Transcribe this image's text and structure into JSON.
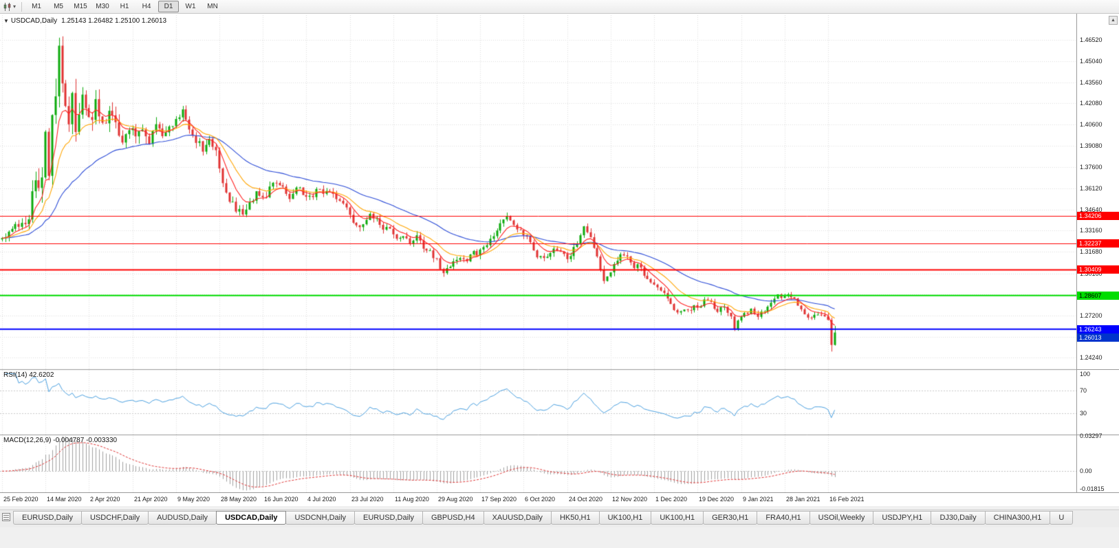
{
  "toolbar": {
    "dropdown_icon": "▾",
    "timeframes": [
      "M1",
      "M5",
      "M15",
      "M30",
      "H1",
      "H4",
      "D1",
      "W1",
      "MN"
    ],
    "active_timeframe": "D1"
  },
  "chart": {
    "collapse_icon": "▼",
    "title_symbol": "USDCAD,Daily",
    "title_ohlc": "1.25143 1.26482 1.25100 1.26013",
    "scroll_up_icon": "▲",
    "colors": {
      "background": "#ffffff",
      "grid": "#dcdcdc",
      "up": "#0caa0c",
      "down": "#e03232",
      "ma_fast": "#ff2222",
      "ma_mid": "#ffa500",
      "ma_slow": "#2b4bd7",
      "rsi_line": "#4aa0e0",
      "macd_hist": "#a0a0a0",
      "macd_signal": "#e03232",
      "separator": "#9a9a9a",
      "axis_text": "#1a1a1a"
    },
    "price_axis_labels": [
      "1.46520",
      "1.45040",
      "1.43560",
      "1.42080",
      "1.40600",
      "1.39080",
      "1.37600",
      "1.36120",
      "1.34640",
      "1.33160",
      "1.31680",
      "1.30160",
      "1.28680",
      "1.27200",
      "1.25720",
      "1.24240"
    ],
    "hlines": [
      {
        "price": 1.34206,
        "label": "1.34206",
        "color": "#ff0000",
        "text_color": "#ffffff",
        "width": 1
      },
      {
        "price": 1.32237,
        "label": "1.32237",
        "color": "#ff0000",
        "text_color": "#ffffff",
        "width": 1
      },
      {
        "price": 1.30409,
        "label": "1.30409",
        "color": "#ff0000",
        "text_color": "#ffffff",
        "width": 2
      },
      {
        "price": 1.28607,
        "label": "1.28607",
        "color": "#00dd00",
        "text_color": "#000000",
        "width": 2
      },
      {
        "price": 1.26243,
        "label": "1.26243",
        "color": "#0000ff",
        "text_color": "#ffffff",
        "width": 2
      }
    ],
    "current_price": {
      "price": 1.26013,
      "label": "1.26013",
      "color": "#0033cc",
      "text_color": "#ffffff"
    }
  },
  "chart_data": {
    "type": "candlestick",
    "symbol": "USDCAD",
    "timeframe": "Daily",
    "visible_price_range": [
      1.2344,
      1.4826
    ],
    "bar_count": 250,
    "bars_per_x_label": 13,
    "x_labels": [
      "25 Feb 2020",
      "14 Mar 2020",
      "2 Apr 2020",
      "21 Apr 2020",
      "9 May 2020",
      "28 May 2020",
      "16 Jun 2020",
      "4 Jul 2020",
      "23 Jul 2020",
      "11 Aug 2020",
      "29 Aug 2020",
      "17 Sep 2020",
      "6 Oct 2020",
      "24 Oct 2020",
      "12 Nov 2020",
      "1 Dec 2020",
      "19 Dec 2020",
      "9 Jan 2021",
      "28 Jan 2021",
      "16 Feb 2021"
    ],
    "current_bar": {
      "open": 1.25143,
      "high": 1.26482,
      "low": 1.251,
      "close": 1.26013
    },
    "previous_bar": {
      "open": 1.269,
      "high": 1.2706,
      "low": 1.2468,
      "close": 1.25143
    },
    "key_extremes": [
      {
        "index": 17,
        "high": 1.4668
      },
      {
        "index": 132,
        "low": 1.2992
      },
      {
        "index": 151,
        "high": 1.3442
      }
    ],
    "close_path_anchors": [
      [
        0,
        1.3272
      ],
      [
        3,
        1.331
      ],
      [
        5,
        1.338
      ],
      [
        7,
        1.335
      ],
      [
        8,
        1.342
      ],
      [
        9,
        1.365
      ],
      [
        10,
        1.362
      ],
      [
        11,
        1.368
      ],
      [
        12,
        1.374
      ],
      [
        13,
        1.392
      ],
      [
        14,
        1.378
      ],
      [
        15,
        1.403
      ],
      [
        16,
        1.435
      ],
      [
        17,
        1.453
      ],
      [
        18,
        1.442
      ],
      [
        19,
        1.426
      ],
      [
        20,
        1.412
      ],
      [
        21,
        1.425
      ],
      [
        22,
        1.402
      ],
      [
        23,
        1.415
      ],
      [
        24,
        1.43
      ],
      [
        25,
        1.422
      ],
      [
        26,
        1.409
      ],
      [
        28,
        1.418
      ],
      [
        30,
        1.406
      ],
      [
        32,
        1.415
      ],
      [
        34,
        1.408
      ],
      [
        36,
        1.398
      ],
      [
        38,
        1.406
      ],
      [
        40,
        1.395
      ],
      [
        42,
        1.401
      ],
      [
        44,
        1.393
      ],
      [
        46,
        1.405
      ],
      [
        48,
        1.397
      ],
      [
        50,
        1.402
      ],
      [
        52,
        1.409
      ],
      [
        54,
        1.413
      ],
      [
        56,
        1.402
      ],
      [
        58,
        1.395
      ],
      [
        60,
        1.39
      ],
      [
        62,
        1.393
      ],
      [
        64,
        1.385
      ],
      [
        65,
        1.377
      ],
      [
        67,
        1.358
      ],
      [
        69,
        1.35
      ],
      [
        71,
        1.346
      ],
      [
        72,
        1.343
      ],
      [
        74,
        1.35
      ],
      [
        76,
        1.357
      ],
      [
        78,
        1.3545
      ],
      [
        80,
        1.36
      ],
      [
        82,
        1.365
      ],
      [
        84,
        1.36
      ],
      [
        86,
        1.356
      ],
      [
        88,
        1.364
      ],
      [
        90,
        1.359
      ],
      [
        92,
        1.355
      ],
      [
        94,
        1.36
      ],
      [
        96,
        1.357
      ],
      [
        98,
        1.361
      ],
      [
        100,
        1.356
      ],
      [
        102,
        1.352
      ],
      [
        104,
        1.342
      ],
      [
        106,
        1.337
      ],
      [
        108,
        1.3345
      ],
      [
        110,
        1.342
      ],
      [
        112,
        1.339
      ],
      [
        114,
        1.334
      ],
      [
        116,
        1.331
      ],
      [
        118,
        1.326
      ],
      [
        120,
        1.329
      ],
      [
        122,
        1.323
      ],
      [
        124,
        1.326
      ],
      [
        126,
        1.321
      ],
      [
        128,
        1.317
      ],
      [
        130,
        1.311
      ],
      [
        131,
        1.306
      ],
      [
        132,
        1.3005
      ],
      [
        133,
        1.306
      ],
      [
        135,
        1.311
      ],
      [
        137,
        1.313
      ],
      [
        139,
        1.31
      ],
      [
        141,
        1.316
      ],
      [
        143,
        1.3165
      ],
      [
        145,
        1.322
      ],
      [
        147,
        1.329
      ],
      [
        149,
        1.337
      ],
      [
        151,
        1.3415
      ],
      [
        153,
        1.337
      ],
      [
        155,
        1.331
      ],
      [
        156,
        1.328
      ],
      [
        158,
        1.323
      ],
      [
        160,
        1.315
      ],
      [
        162,
        1.313
      ],
      [
        164,
        1.316
      ],
      [
        166,
        1.32
      ],
      [
        168,
        1.315
      ],
      [
        169,
        1.312
      ],
      [
        171,
        1.318
      ],
      [
        173,
        1.329
      ],
      [
        174,
        1.333
      ],
      [
        176,
        1.329
      ],
      [
        178,
        1.313
      ],
      [
        180,
        1.2985
      ],
      [
        182,
        1.304
      ],
      [
        184,
        1.312
      ],
      [
        186,
        1.316
      ],
      [
        188,
        1.309
      ],
      [
        190,
        1.306
      ],
      [
        192,
        1.302
      ],
      [
        194,
        1.296
      ],
      [
        195,
        1.293
      ],
      [
        197,
        1.289
      ],
      [
        199,
        1.283
      ],
      [
        201,
        1.277
      ],
      [
        203,
        1.273
      ],
      [
        205,
        1.276
      ],
      [
        207,
        1.279
      ],
      [
        208,
        1.277
      ],
      [
        210,
        1.284
      ],
      [
        212,
        1.28
      ],
      [
        214,
        1.275
      ],
      [
        216,
        1.278
      ],
      [
        218,
        1.27
      ],
      [
        219,
        1.2645
      ],
      [
        220,
        1.269
      ],
      [
        222,
        1.272
      ],
      [
        224,
        1.276
      ],
      [
        226,
        1.272
      ],
      [
        228,
        1.276
      ],
      [
        230,
        1.282
      ],
      [
        232,
        1.286
      ],
      [
        234,
        1.2845
      ],
      [
        236,
        1.2865
      ],
      [
        238,
        1.279
      ],
      [
        240,
        1.2725
      ],
      [
        242,
        1.2695
      ],
      [
        244,
        1.274
      ],
      [
        246,
        1.2715
      ],
      [
        247,
        1.269
      ],
      [
        248,
        1.25143
      ],
      [
        249,
        1.26013
      ]
    ],
    "overlays": {
      "moving_averages": [
        "ma_fast",
        "ma_mid",
        "ma_slow"
      ]
    }
  },
  "rsi_pane": {
    "label": "RSI(14) 42.6202",
    "period": 14,
    "value": 42.6202,
    "axis_labels": [
      {
        "text": "100",
        "value": 100
      },
      {
        "text": "70",
        "value": 70
      },
      {
        "text": "30",
        "value": 30
      }
    ],
    "levels": [
      70,
      30
    ],
    "range": [
      -8,
      108
    ]
  },
  "macd_pane": {
    "label": "MACD(12,26,9) -0.004787 -0.003330",
    "fast": 12,
    "slow": 26,
    "signal_period": 9,
    "main_value": -0.004787,
    "signal_value": -0.00333,
    "axis_labels": [
      {
        "text": "0.03297",
        "value": 0.03297
      },
      {
        "text": "0.00",
        "value": 0
      },
      {
        "text": "-0.01815",
        "value": -0.01815
      }
    ],
    "range": [
      -0.02,
      0.0345
    ]
  },
  "tabs": {
    "items": [
      "EURUSD,Daily",
      "USDCHF,Daily",
      "AUDUSD,Daily",
      "USDCAD,Daily",
      "USDCNH,Daily",
      "EURUSD,Daily",
      "GBPUSD,H4",
      "XAUUSD,Daily",
      "HK50,H1",
      "UK100,H1",
      "UK100,H1",
      "GER30,H1",
      "FRA40,H1",
      "USOil,Weekly",
      "USDJPY,H1",
      "DJ30,Daily",
      "CHINA300,H1",
      "U"
    ],
    "active_index": 3
  }
}
